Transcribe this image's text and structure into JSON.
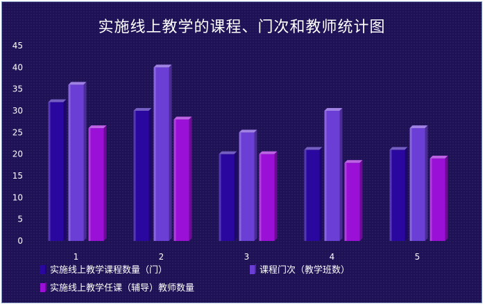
{
  "chart_data": {
    "type": "bar",
    "title": "实施线上教学的课程、门次和教师统计图",
    "xlabel": "",
    "ylabel": "",
    "categories": [
      "1",
      "2",
      "3",
      "4",
      "5"
    ],
    "ylim": [
      0,
      45
    ],
    "yticks": [
      0,
      5,
      10,
      15,
      20,
      25,
      30,
      35,
      40,
      45
    ],
    "grid": false,
    "legend_position": "bottom",
    "series": [
      {
        "name": "实施线上教学课程数量（门）",
        "values": [
          32,
          30,
          20,
          21,
          21
        ],
        "color": "#2a08a0"
      },
      {
        "name": "课程门次（教学班数）",
        "values": [
          36,
          40,
          25,
          30,
          26
        ],
        "color": "#6b3fd6"
      },
      {
        "name": "实施线上教学任课（辅导）教师数量",
        "values": [
          26,
          28,
          20,
          18,
          19
        ],
        "color": "#9a10d6"
      }
    ]
  }
}
